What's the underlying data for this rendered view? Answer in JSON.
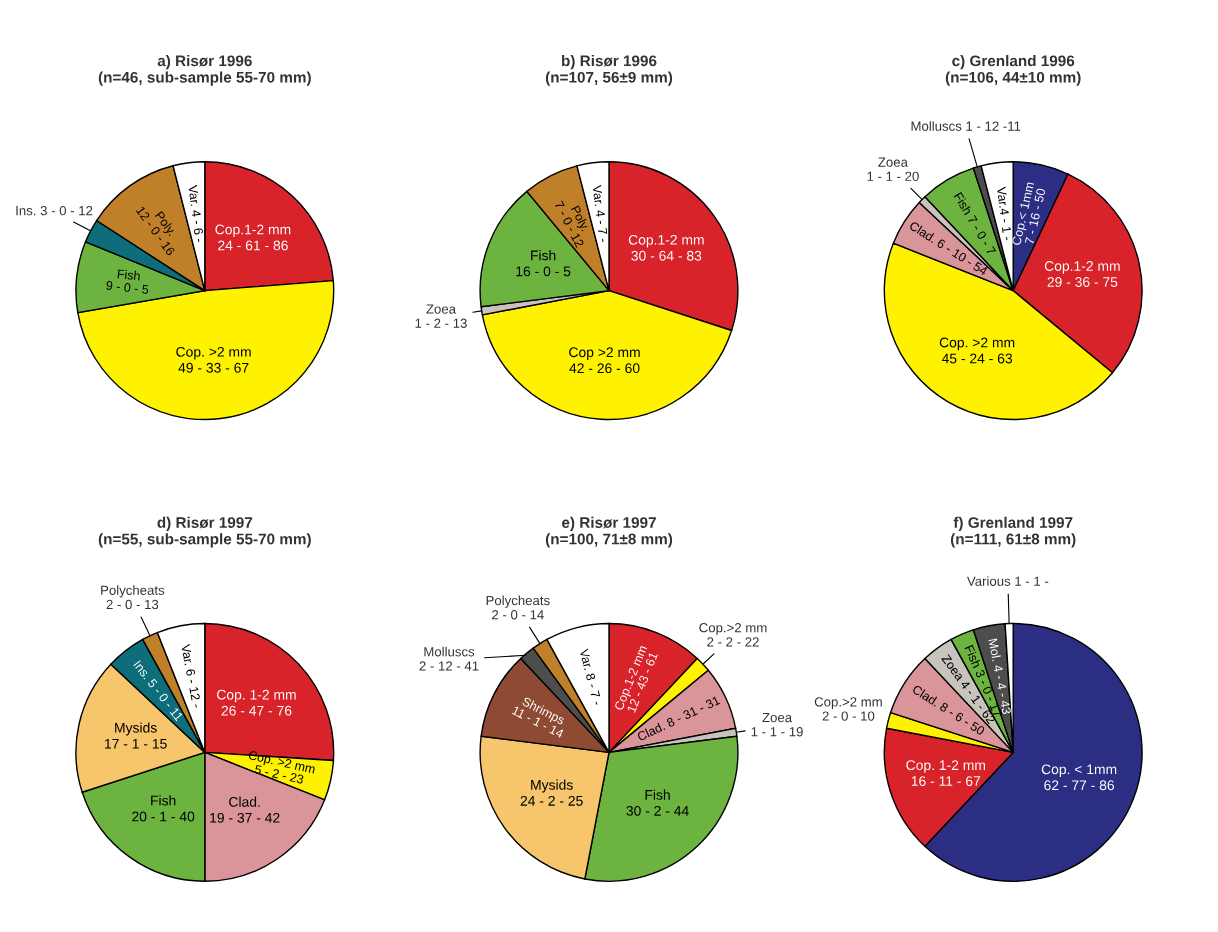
{
  "chart_data": [
    {
      "type": "pie",
      "title": "a) Risør 1996\n(n=46, sub-sample 55-70 mm)",
      "categories": [
        "Cop.1-2 mm\n24 - 61 - 86",
        "Cop. >2 mm\n49 - 33 - 67",
        "Fish\n9 - 0 - 5",
        "Ins. 3 - 0 - 12",
        "Poly.\n12 - 0 - 16",
        "Var. 4 - 6 -"
      ],
      "values": [
        24,
        49,
        9,
        3,
        12,
        4
      ],
      "colors": [
        "#d9232a",
        "#fff200",
        "#6db33f",
        "#0d6d7a",
        "#c0802a",
        "#ffffff"
      ]
    },
    {
      "type": "pie",
      "title": "b) Risør 1996\n(n=107, 56±9 mm)",
      "categories": [
        "Cop.1-2 mm\n30 - 64 - 83",
        "Cop >2 mm\n42 - 26 - 60",
        "Zoea\n1 - 2 - 13",
        "Fish\n16 - 0 - 5",
        "Poly.\n7 - 0 - 12",
        "Var. 4 - 7 -"
      ],
      "values": [
        30,
        42,
        1,
        16,
        7,
        4
      ],
      "colors": [
        "#d9232a",
        "#fff200",
        "#c8c3bc",
        "#6db33f",
        "#c0802a",
        "#ffffff"
      ]
    },
    {
      "type": "pie",
      "title": "c) Grenland 1996\n(n=106, 44±10 mm)",
      "categories": [
        "Cop.< 1mm\n7 - 16 - 50",
        "Cop.1-2 mm\n29 - 36 - 75",
        "Cop. >2 mm\n45 - 24 - 63",
        "Clad. 6 - 10 - 54",
        "Zoea\n1 - 1 - 20",
        "Fish 7 - 0 - 7",
        "Molluscs 1 - 12 -11",
        "Var.4 - 1 -"
      ],
      "values": [
        7,
        29,
        45,
        6,
        1,
        7,
        1,
        4
      ],
      "colors": [
        "#2b2e83",
        "#d9232a",
        "#fff200",
        "#d9959a",
        "#c8c3bc",
        "#6db33f",
        "#4d4d4d",
        "#ffffff"
      ]
    },
    {
      "type": "pie",
      "title": "d) Risør 1997\n(n=55, sub-sample 55-70 mm)",
      "categories": [
        "Cop. 1-2 mm\n26 - 47 - 76",
        "Cop. >2 mm\n5 - 2 - 23",
        "Clad.\n19 - 37 - 42",
        "Fish\n20 - 1 - 40",
        "Mysids\n17 - 1 - 15",
        "Ins. 5 - 0 - 11",
        "Polycheats\n2 - 0 - 13",
        "Var. 6 - 12 -"
      ],
      "values": [
        26,
        5,
        19,
        20,
        17,
        5,
        2,
        6
      ],
      "colors": [
        "#d9232a",
        "#fff200",
        "#d9959a",
        "#6db33f",
        "#f7c56b",
        "#0d6d7a",
        "#c0802a",
        "#ffffff"
      ]
    },
    {
      "type": "pie",
      "title": "e) Risør 1997\n(n=100, 71±8 mm)",
      "categories": [
        "Cop.1-2 mm\n12 - 43 - 61",
        "Cop.>2 mm\n2 - 2 - 22",
        "Clad. 8 - 31 - 31",
        "Zoea\n1 - 1 - 19",
        "Fish\n30 - 2 - 44",
        "Mysids\n24 - 2 - 25",
        "Shrimps\n11 - 1 - 14",
        "Molluscs\n2 - 12 - 41",
        "Polycheats\n2 - 0 - 14",
        "Var. 8 - 7 -"
      ],
      "values": [
        12,
        2,
        8,
        1,
        30,
        24,
        11,
        2,
        2,
        8
      ],
      "colors": [
        "#d9232a",
        "#fff200",
        "#d9959a",
        "#c8c3bc",
        "#6db33f",
        "#f7c56b",
        "#8e4a32",
        "#4d4d4d",
        "#c0802a",
        "#ffffff"
      ]
    },
    {
      "type": "pie",
      "title": "f) Grenland 1997\n(n=111, 61±8 mm)",
      "categories": [
        "Cop. < 1mm\n62 - 77 - 86",
        "Cop. 1-2 mm\n16 - 11 - 67",
        "Cop.>2 mm\n2 - 0 - 10",
        "Clad. 8 - 6 - 50",
        "Zoea 4 - 1 - 62",
        "Fish 3 - 0 - 17",
        "Mol. 4 - 4 - 43",
        "Various 1 - 1 -"
      ],
      "values": [
        62,
        16,
        2,
        8,
        4,
        3,
        4,
        1
      ],
      "colors": [
        "#2b2e83",
        "#d9232a",
        "#fff200",
        "#d9959a",
        "#c8c3bc",
        "#6db33f",
        "#4d4d4d",
        "#ffffff"
      ]
    }
  ]
}
